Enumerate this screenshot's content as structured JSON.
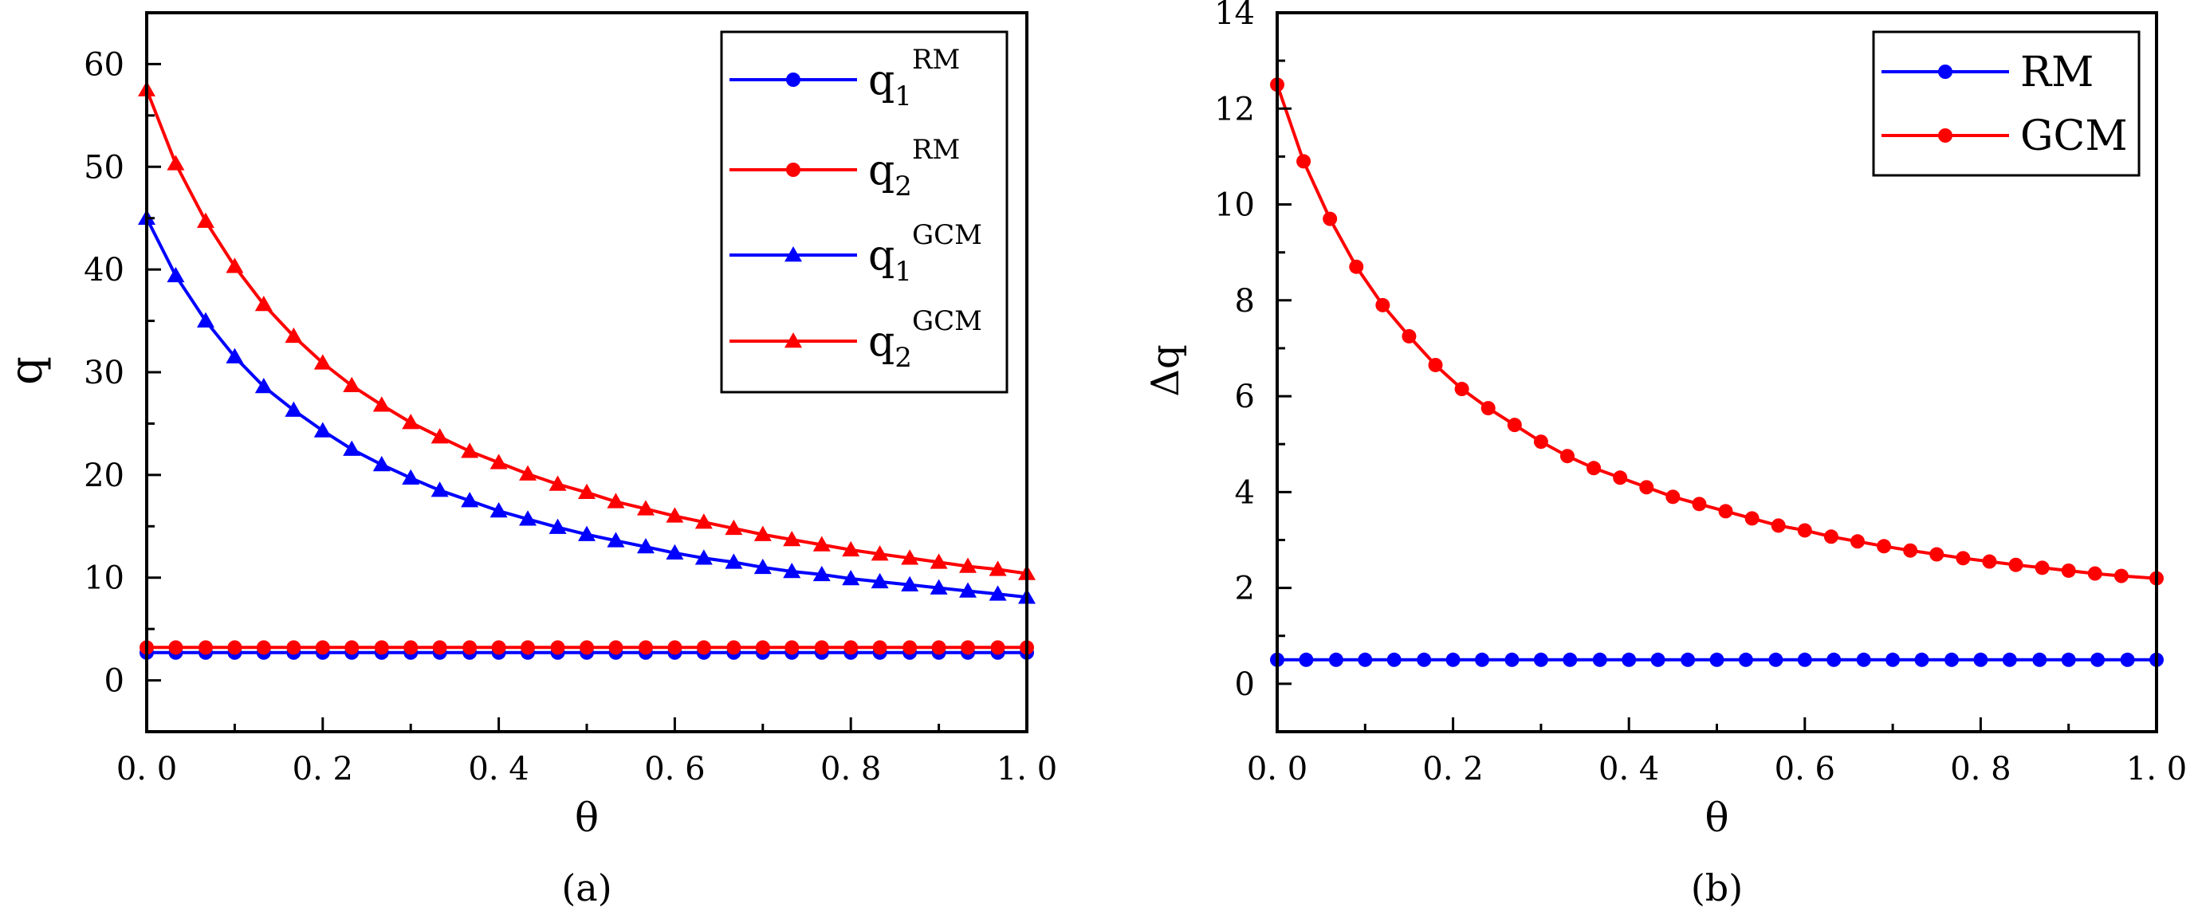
{
  "chart_data": [
    {
      "panel_label": "(a)",
      "type": "line",
      "xlabel": "θ",
      "ylabel": "q",
      "xlim": [
        0,
        1
      ],
      "ylim": [
        -5,
        65
      ],
      "xticks": [
        0,
        0.2,
        0.4,
        0.6,
        0.8,
        1.0
      ],
      "xtick_labels": [
        "0. 0",
        "0. 2",
        "0. 4",
        "0. 6",
        "0. 8",
        "1. 0"
      ],
      "yticks": [
        0,
        10,
        20,
        30,
        40,
        50,
        60
      ],
      "ytick_labels": [
        "0",
        "10",
        "20",
        "30",
        "40",
        "50",
        "60"
      ],
      "legend_position": "top-right",
      "series": [
        {
          "name": "q1^RM",
          "legend_base": "q",
          "legend_sub": "1",
          "legend_sup": "RM",
          "color": "#0000ff",
          "marker": "circle",
          "x": [
            0,
            0.033,
            0.067,
            0.1,
            0.133,
            0.167,
            0.2,
            0.233,
            0.267,
            0.3,
            0.333,
            0.367,
            0.4,
            0.433,
            0.467,
            0.5,
            0.533,
            0.567,
            0.6,
            0.633,
            0.667,
            0.7,
            0.733,
            0.767,
            0.8,
            0.833,
            0.867,
            0.9,
            0.933,
            0.967,
            1.0
          ],
          "y": [
            2.7,
            2.7,
            2.7,
            2.7,
            2.7,
            2.7,
            2.7,
            2.7,
            2.7,
            2.7,
            2.7,
            2.7,
            2.7,
            2.7,
            2.7,
            2.7,
            2.7,
            2.7,
            2.7,
            2.7,
            2.7,
            2.7,
            2.7,
            2.7,
            2.7,
            2.7,
            2.7,
            2.7,
            2.7,
            2.7,
            2.7
          ]
        },
        {
          "name": "q2^RM",
          "legend_base": "q",
          "legend_sub": "2",
          "legend_sup": "RM",
          "color": "#ff0000",
          "marker": "circle",
          "x": [
            0,
            0.033,
            0.067,
            0.1,
            0.133,
            0.167,
            0.2,
            0.233,
            0.267,
            0.3,
            0.333,
            0.367,
            0.4,
            0.433,
            0.467,
            0.5,
            0.533,
            0.567,
            0.6,
            0.633,
            0.667,
            0.7,
            0.733,
            0.767,
            0.8,
            0.833,
            0.867,
            0.9,
            0.933,
            0.967,
            1.0
          ],
          "y": [
            3.2,
            3.2,
            3.2,
            3.2,
            3.2,
            3.2,
            3.2,
            3.2,
            3.2,
            3.2,
            3.2,
            3.2,
            3.2,
            3.2,
            3.2,
            3.2,
            3.2,
            3.2,
            3.2,
            3.2,
            3.2,
            3.2,
            3.2,
            3.2,
            3.2,
            3.2,
            3.2,
            3.2,
            3.2,
            3.2,
            3.2
          ]
        },
        {
          "name": "q1^GCM",
          "legend_base": "q",
          "legend_sub": "1",
          "legend_sup": "GCM",
          "color": "#0000ff",
          "marker": "triangle",
          "x": [
            0,
            0.033,
            0.067,
            0.1,
            0.133,
            0.167,
            0.2,
            0.233,
            0.267,
            0.3,
            0.333,
            0.367,
            0.4,
            0.433,
            0.467,
            0.5,
            0.533,
            0.567,
            0.6,
            0.633,
            0.667,
            0.7,
            0.733,
            0.767,
            0.8,
            0.833,
            0.867,
            0.9,
            0.933,
            0.967,
            1.0
          ],
          "y": [
            45.0,
            39.4,
            35.0,
            31.5,
            28.6,
            26.3,
            24.3,
            22.5,
            21.0,
            19.7,
            18.5,
            17.5,
            16.5,
            15.7,
            14.9,
            14.2,
            13.6,
            13.0,
            12.4,
            11.9,
            11.5,
            11.0,
            10.6,
            10.3,
            9.9,
            9.6,
            9.3,
            9.0,
            8.7,
            8.4,
            8.1
          ]
        },
        {
          "name": "q2^GCM",
          "legend_base": "q",
          "legend_sub": "2",
          "legend_sup": "GCM",
          "color": "#ff0000",
          "marker": "triangle",
          "x": [
            0,
            0.033,
            0.067,
            0.1,
            0.133,
            0.167,
            0.2,
            0.233,
            0.267,
            0.3,
            0.333,
            0.367,
            0.4,
            0.433,
            0.467,
            0.5,
            0.533,
            0.567,
            0.6,
            0.633,
            0.667,
            0.7,
            0.733,
            0.767,
            0.8,
            0.833,
            0.867,
            0.9,
            0.933,
            0.967,
            1.0
          ],
          "y": [
            57.5,
            50.3,
            44.7,
            40.3,
            36.6,
            33.5,
            30.9,
            28.7,
            26.8,
            25.1,
            23.7,
            22.3,
            21.2,
            20.1,
            19.1,
            18.3,
            17.4,
            16.7,
            16.0,
            15.4,
            14.8,
            14.2,
            13.7,
            13.2,
            12.7,
            12.3,
            11.9,
            11.5,
            11.1,
            10.8,
            10.4
          ]
        }
      ]
    },
    {
      "panel_label": "(b)",
      "type": "line",
      "xlabel": "θ",
      "ylabel": "Δq",
      "xlim": [
        0,
        1
      ],
      "ylim": [
        -1,
        14
      ],
      "xticks": [
        0,
        0.2,
        0.4,
        0.6,
        0.8,
        1.0
      ],
      "xtick_labels": [
        "0. 0",
        "0. 2",
        "0. 4",
        "0. 6",
        "0. 8",
        "1. 0"
      ],
      "yticks": [
        0,
        2,
        4,
        6,
        8,
        10,
        12,
        14
      ],
      "ytick_labels": [
        "0",
        "2",
        "4",
        "6",
        "8",
        "10",
        "12",
        "14"
      ],
      "legend_position": "top-right",
      "series": [
        {
          "name": "RM",
          "legend_base": "RM",
          "color": "#0000ff",
          "marker": "circle",
          "x": [
            0,
            0.033,
            0.067,
            0.1,
            0.133,
            0.167,
            0.2,
            0.233,
            0.267,
            0.3,
            0.333,
            0.367,
            0.4,
            0.433,
            0.467,
            0.5,
            0.533,
            0.567,
            0.6,
            0.633,
            0.667,
            0.7,
            0.733,
            0.767,
            0.8,
            0.833,
            0.867,
            0.9,
            0.933,
            0.967,
            1.0
          ],
          "y": [
            0.5,
            0.5,
            0.5,
            0.5,
            0.5,
            0.5,
            0.5,
            0.5,
            0.5,
            0.5,
            0.5,
            0.5,
            0.5,
            0.5,
            0.5,
            0.5,
            0.5,
            0.5,
            0.5,
            0.5,
            0.5,
            0.5,
            0.5,
            0.5,
            0.5,
            0.5,
            0.5,
            0.5,
            0.5,
            0.5,
            0.5
          ]
        },
        {
          "name": "GCM",
          "legend_base": "GCM",
          "color": "#ff0000",
          "marker": "circle",
          "x": [
            0,
            0.03,
            0.06,
            0.09,
            0.12,
            0.15,
            0.18,
            0.21,
            0.24,
            0.27,
            0.3,
            0.33,
            0.36,
            0.39,
            0.42,
            0.45,
            0.48,
            0.51,
            0.54,
            0.57,
            0.6,
            0.63,
            0.66,
            0.69,
            0.72,
            0.75,
            0.78,
            0.81,
            0.84,
            0.87,
            0.9,
            0.93,
            0.96,
            1.0
          ],
          "y": [
            12.5,
            10.9,
            9.7,
            8.7,
            7.9,
            7.25,
            6.65,
            6.15,
            5.75,
            5.4,
            5.05,
            4.75,
            4.5,
            4.3,
            4.1,
            3.9,
            3.75,
            3.6,
            3.45,
            3.3,
            3.2,
            3.07,
            2.97,
            2.87,
            2.78,
            2.7,
            2.62,
            2.55,
            2.48,
            2.42,
            2.36,
            2.3,
            2.25,
            2.2
          ]
        }
      ]
    }
  ]
}
